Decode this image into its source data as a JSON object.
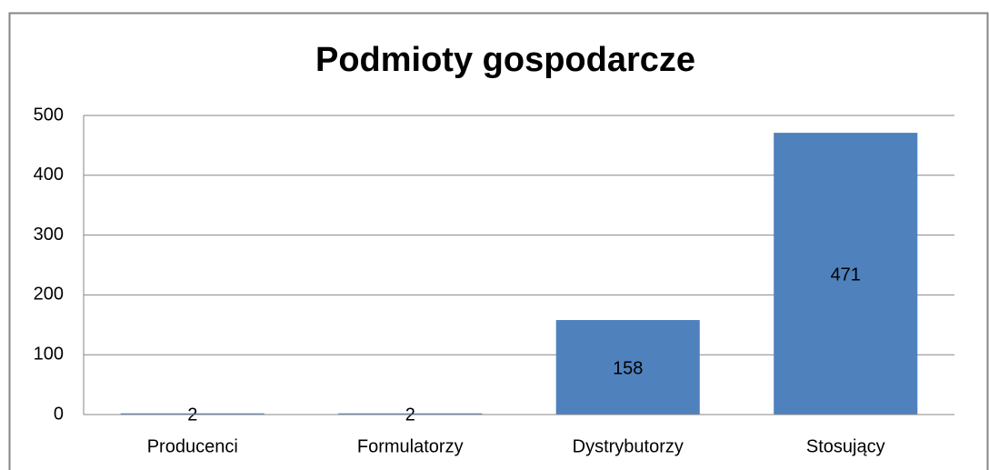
{
  "chart_data": {
    "type": "bar",
    "title": "Podmioty gospodarcze",
    "categories": [
      "Producenci",
      "Formulatorzy",
      "Dystrybutorzy",
      "Stosujący"
    ],
    "values": [
      2,
      2,
      158,
      471
    ],
    "color": "#4f81bd",
    "ylim": [
      0,
      500
    ],
    "yticks": [
      0,
      100,
      200,
      300,
      400,
      500
    ],
    "grid": true
  }
}
